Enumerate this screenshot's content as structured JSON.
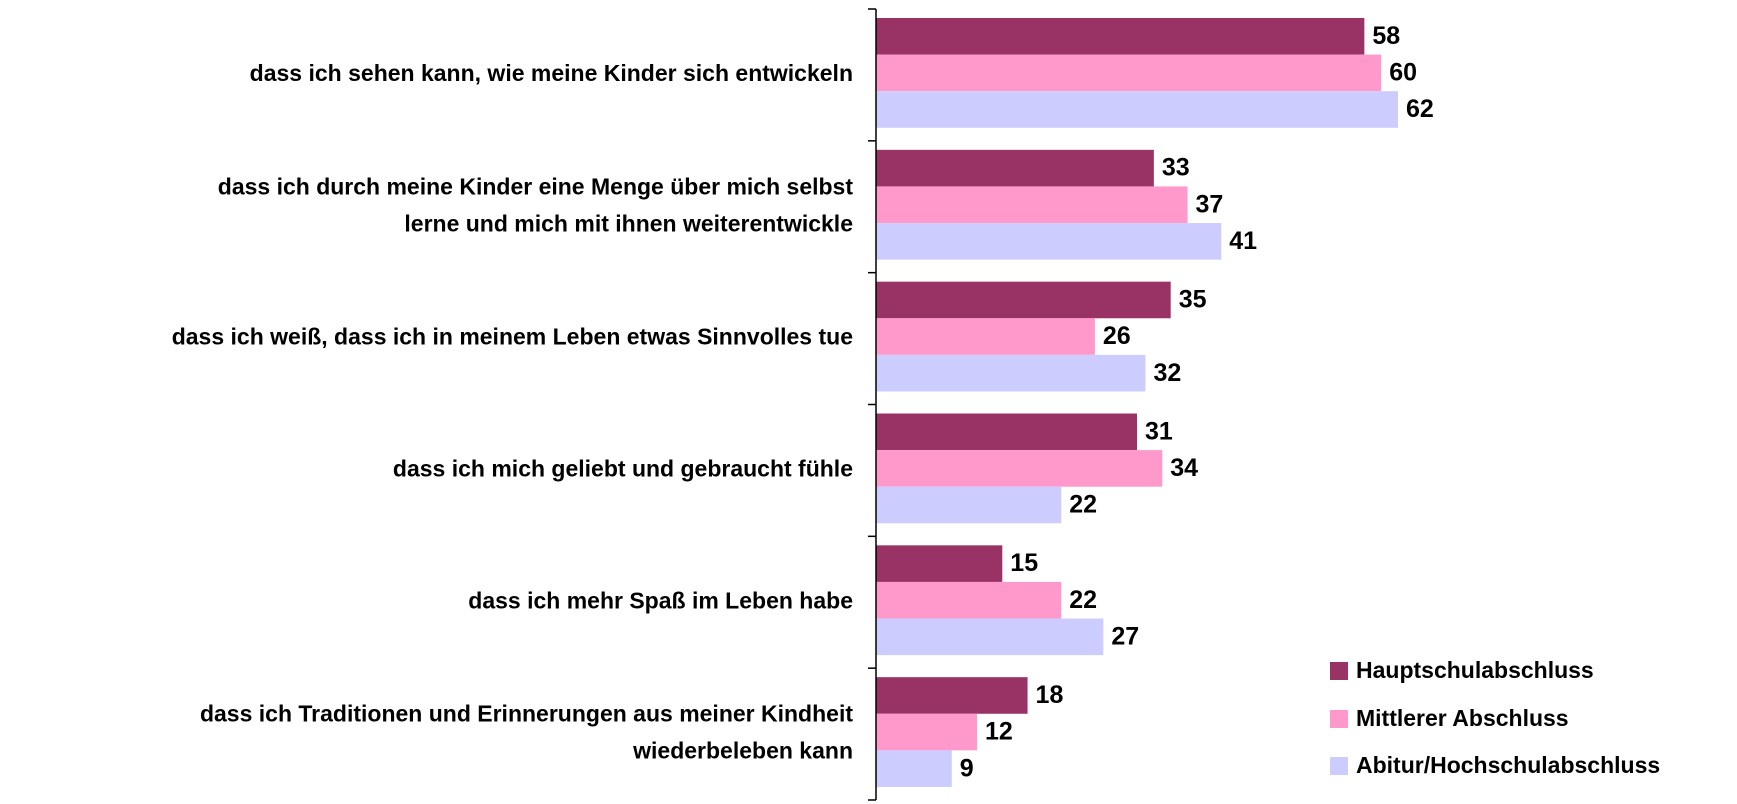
{
  "chart_data": {
    "type": "bar",
    "orientation": "horizontal",
    "categories": [
      [
        "dass ich sehen kann, wie meine Kinder sich entwickeln"
      ],
      [
        "dass ich durch meine Kinder eine Menge über mich selbst",
        "lerne und mich mit ihnen weiterentwickle"
      ],
      [
        "dass ich weiß, dass ich in meinem Leben etwas Sinnvolles tue"
      ],
      [
        "dass ich mich geliebt und gebraucht fühle"
      ],
      [
        "dass ich mehr Spaß im Leben habe"
      ],
      [
        "dass ich Traditionen und Erinnerungen aus meiner Kindheit",
        "wiederbeleben kann"
      ]
    ],
    "series": [
      {
        "name": "Hauptschulabschluss",
        "color": "#993366",
        "values": [
          58,
          33,
          35,
          31,
          15,
          18
        ]
      },
      {
        "name": "Mittlerer Abschluss",
        "color": "#ff99cc",
        "values": [
          60,
          37,
          26,
          34,
          22,
          12
        ]
      },
      {
        "name": "Abitur/Hochschulabschluss",
        "color": "#ccccff",
        "values": [
          62,
          41,
          32,
          22,
          27,
          9
        ]
      }
    ],
    "legend": "lower right"
  }
}
